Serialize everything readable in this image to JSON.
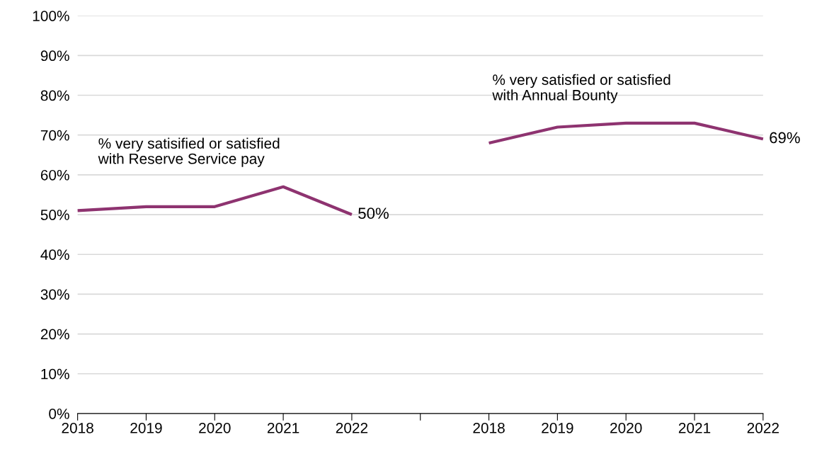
{
  "chart_data": {
    "type": "line",
    "categories": [
      "2018",
      "2019",
      "2020",
      "2021",
      "2022",
      null,
      "2018",
      "2019",
      "2020",
      "2021",
      "2022"
    ],
    "series": [
      {
        "color": "#8e3370",
        "values": [
          51,
          52,
          52,
          57,
          50,
          null,
          null,
          null,
          null,
          null,
          null
        ],
        "value_labels": [
          null,
          null,
          null,
          null,
          "50%",
          null,
          null,
          null,
          null,
          null,
          null
        ]
      },
      {
        "color": "#8e3370",
        "values": [
          null,
          null,
          null,
          null,
          null,
          null,
          68,
          72,
          73,
          73,
          69
        ],
        "value_labels": [
          null,
          null,
          null,
          null,
          null,
          null,
          null,
          null,
          null,
          null,
          "69%"
        ]
      }
    ],
    "annotations": [
      "% very satisified or satisfied\nwith Reserve Service pay",
      "% very satisfied or satisfied\nwith Annual Bounty"
    ],
    "ylim": [
      0,
      100
    ],
    "yticks": [
      {
        "value": 0,
        "label": "0%"
      },
      {
        "value": 10,
        "label": "10%"
      },
      {
        "value": 20,
        "label": "20%"
      },
      {
        "value": 30,
        "label": "30%"
      },
      {
        "value": 40,
        "label": "40%"
      },
      {
        "value": 50,
        "label": "50%"
      },
      {
        "value": 60,
        "label": "60%"
      },
      {
        "value": 70,
        "label": "70%"
      },
      {
        "value": 80,
        "label": "80%"
      },
      {
        "value": 90,
        "label": "90%"
      },
      {
        "value": 100,
        "label": "100%"
      }
    ],
    "grid": "y",
    "marker": "none",
    "line_style": "solid"
  }
}
